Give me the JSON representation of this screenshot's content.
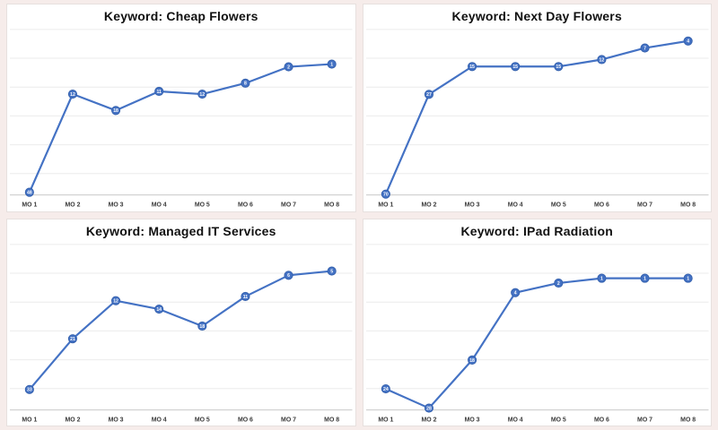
{
  "page": {
    "background_color": "#f6ecea",
    "panel_color": "#ffffff"
  },
  "colors": {
    "line": "#4472c4",
    "marker_fill": "#4472c4",
    "marker_stroke": "#3662ae",
    "marker_text": "#ffffff",
    "gridline": "#ebebeb",
    "axis_line": "#c9c9c9",
    "title_text": "#111111",
    "x_label_text": "#3a3a3a"
  },
  "chart_data": [
    {
      "type": "line",
      "title": "Keyword: Cheap Flowers",
      "categories": [
        "MO 1",
        "MO 2",
        "MO 3",
        "MO 4",
        "MO 5",
        "MO 6",
        "MO 7",
        "MO 8"
      ],
      "values": [
        48,
        12,
        18,
        11,
        12,
        8,
        2,
        1
      ],
      "xlabel": "",
      "ylabel": "",
      "grid": true,
      "legend": false,
      "y_axis_inverted": true,
      "data_labels": "inside markers",
      "layout": {
        "min_frac": 0.218,
        "max_frac": 0.984
      }
    },
    {
      "type": "line",
      "title": "Keyword: Next Day Flowers",
      "categories": [
        "MO 1",
        "MO 2",
        "MO 3",
        "MO 4",
        "MO 5",
        "MO 6",
        "MO 7",
        "MO 8"
      ],
      "values": [
        70,
        27,
        15,
        15,
        15,
        12,
        7,
        4
      ],
      "xlabel": "",
      "ylabel": "",
      "grid": true,
      "legend": false,
      "y_axis_inverted": true,
      "data_labels": "inside markers",
      "layout": {
        "min_frac": 0.08,
        "max_frac": 0.995
      }
    },
    {
      "type": "line",
      "title": "Keyword: Managed IT Services",
      "categories": [
        "MO 1",
        "MO 2",
        "MO 3",
        "MO 4",
        "MO 5",
        "MO 6",
        "MO 7",
        "MO 8"
      ],
      "values": [
        33,
        21,
        12,
        14,
        18,
        11,
        6,
        5
      ],
      "xlabel": "",
      "ylabel": "",
      "grid": true,
      "legend": false,
      "y_axis_inverted": true,
      "data_labels": "inside markers",
      "layout": {
        "min_frac": 0.17,
        "max_frac": 0.878
      }
    },
    {
      "type": "line",
      "title": "Keyword: IPad Radiation",
      "categories": [
        "MO 1",
        "MO 2",
        "MO 3",
        "MO 4",
        "MO 5",
        "MO 6",
        "MO 7",
        "MO 8"
      ],
      "values": [
        24,
        28,
        18,
        4,
        2,
        1,
        1,
        1
      ],
      "xlabel": "",
      "ylabel": "",
      "grid": true,
      "legend": false,
      "y_axis_inverted": true,
      "data_labels": "inside markers",
      "layout": {
        "min_frac": 0.213,
        "max_frac": 0.989
      }
    }
  ]
}
